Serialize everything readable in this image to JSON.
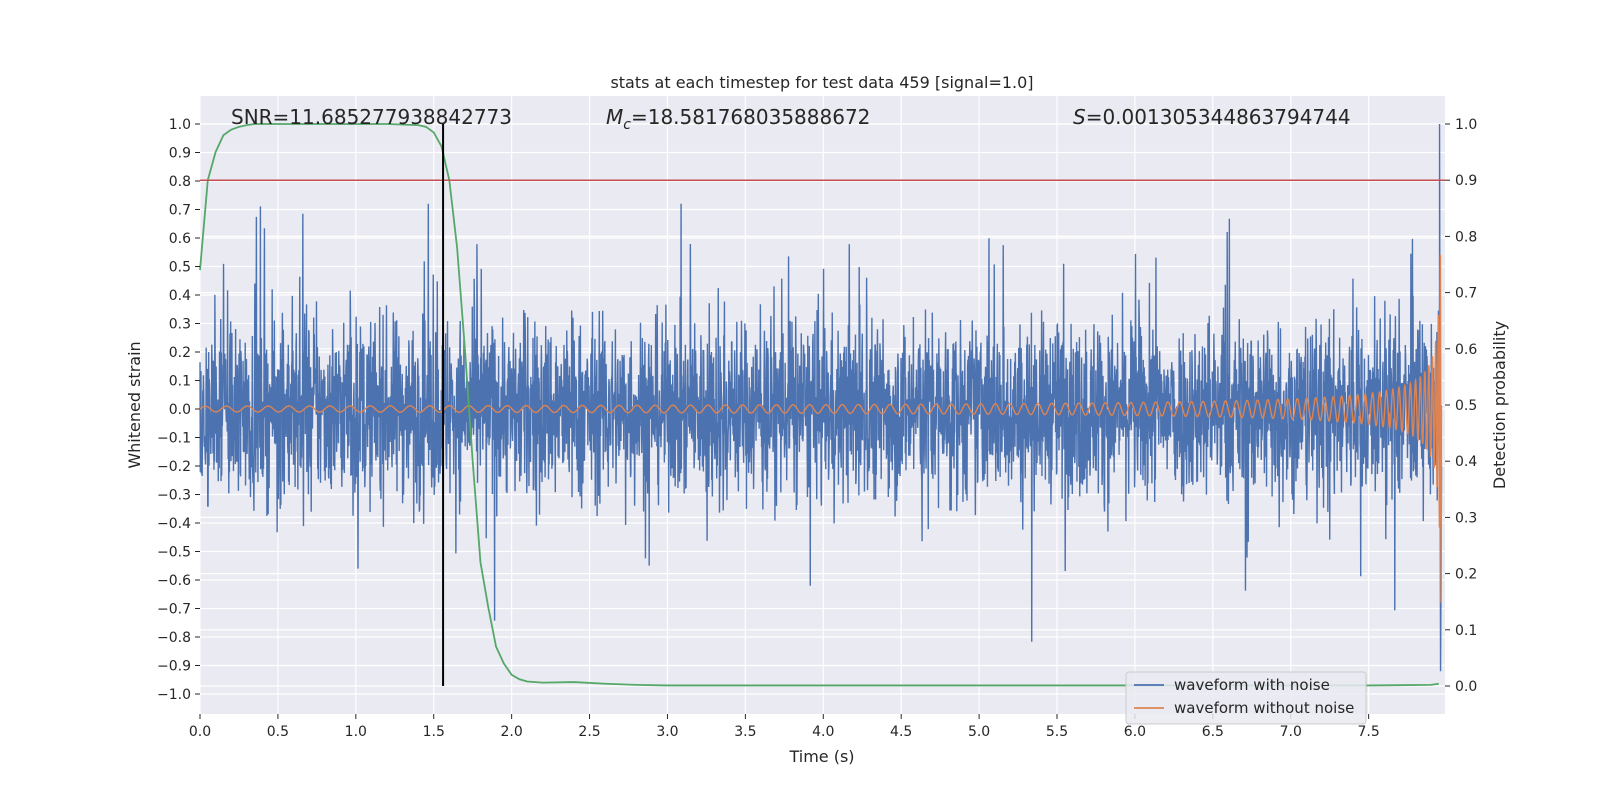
{
  "chart_data": {
    "type": "line",
    "title": "stats at each timestep for test data 459 [signal=1.0]",
    "xlabel": "Time (s)",
    "ylabel": "Whitened strain",
    "y2label": "Detection probability",
    "xlim": [
      0.0,
      7.99
    ],
    "ylim": [
      -1.0,
      1.0
    ],
    "y2lim": [
      -0.045,
      1.0
    ],
    "xticks": [
      0.0,
      0.5,
      1.0,
      1.5,
      2.0,
      2.5,
      3.0,
      3.5,
      4.0,
      4.5,
      5.0,
      5.5,
      6.0,
      6.5,
      7.0,
      7.5
    ],
    "xtick_labels": [
      "0.0",
      "0.5",
      "1.0",
      "1.5",
      "2.0",
      "2.5",
      "3.0",
      "3.5",
      "4.0",
      "4.5",
      "5.0",
      "5.5",
      "6.0",
      "6.5",
      "7.0",
      "7.5"
    ],
    "yticks": [
      1.0,
      0.9,
      0.8,
      0.7,
      0.6,
      0.5,
      0.4,
      0.3,
      0.2,
      0.1,
      0.0,
      -0.1,
      -0.2,
      -0.3,
      -0.4,
      -0.5,
      -0.6,
      -0.7,
      -0.8,
      -0.9,
      -1.0
    ],
    "ytick_labels": [
      "1.0",
      "0.9",
      "0.8",
      "0.7",
      "0.6",
      "0.5",
      "0.4",
      "0.3",
      "0.2",
      "0.1",
      "0.0",
      "−0.1",
      "−0.2",
      "−0.3",
      "−0.4",
      "−0.5",
      "−0.6",
      "−0.7",
      "−0.8",
      "−0.9",
      "−1.0"
    ],
    "y2ticks": [
      1.0,
      0.9,
      0.8,
      0.7,
      0.6,
      0.5,
      0.4,
      0.3,
      0.2,
      0.1,
      0.0
    ],
    "y2tick_labels": [
      "1.0",
      "0.9",
      "0.8",
      "0.7",
      "0.6",
      "0.5",
      "0.4",
      "0.3",
      "0.2",
      "0.1",
      "0.0"
    ],
    "annotations": [
      {
        "id": "snr",
        "text": "SNR=11.685277938842773"
      },
      {
        "id": "mc",
        "prefix": "M",
        "sub": "c",
        "text": "=18.581768035888672"
      },
      {
        "id": "s",
        "prefix": "S",
        "text": "=0.001305344863794744"
      }
    ],
    "threshold": {
      "axis": "y2",
      "value": 0.9,
      "color": "#c44e52"
    },
    "vline": {
      "x": 1.56,
      "color": "#000000",
      "y2_from": 0.0,
      "y2_to": 1.0
    },
    "legend": {
      "placement": "lower-right",
      "entries": [
        {
          "label": "waveform with noise",
          "color": "#4c72b0"
        },
        {
          "label": "waveform without noise",
          "color": "#dd8452"
        }
      ]
    },
    "series": [
      {
        "name": "waveform with noise",
        "color": "#4c72b0",
        "axis": "y",
        "kind": "noise",
        "typical_amplitude": 0.35,
        "max": 1.0,
        "min": -0.92
      },
      {
        "name": "waveform without noise",
        "color": "#dd8452",
        "axis": "y",
        "kind": "chirp",
        "start_amplitude": 0.01,
        "end_amplitude": 0.7,
        "merger_time": 7.97
      },
      {
        "name": "detection probability",
        "color": "#55a868",
        "axis": "y2",
        "x": [
          0.0,
          0.05,
          0.1,
          0.15,
          0.2,
          0.25,
          0.3,
          0.35,
          0.4,
          0.6,
          0.8,
          1.0,
          1.2,
          1.4,
          1.45,
          1.5,
          1.55,
          1.6,
          1.65,
          1.7,
          1.75,
          1.8,
          1.85,
          1.9,
          1.95,
          2.0,
          2.05,
          2.1,
          2.2,
          2.4,
          2.6,
          2.8,
          3.0,
          4.0,
          5.0,
          6.0,
          7.0,
          7.5,
          7.9,
          7.95
        ],
        "y": [
          0.74,
          0.9,
          0.95,
          0.98,
          0.99,
          0.995,
          0.998,
          1.0,
          1.0,
          1.0,
          1.0,
          1.0,
          1.0,
          0.998,
          0.995,
          0.985,
          0.96,
          0.9,
          0.78,
          0.6,
          0.4,
          0.22,
          0.14,
          0.07,
          0.04,
          0.02,
          0.012,
          0.008,
          0.006,
          0.007,
          0.004,
          0.002,
          0.001,
          0.001,
          0.001,
          0.001,
          0.001,
          0.001,
          0.002,
          0.004
        ]
      }
    ]
  }
}
